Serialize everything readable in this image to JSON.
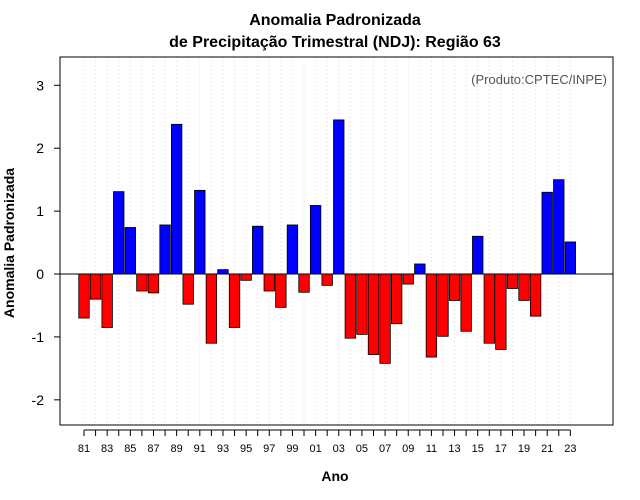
{
  "chart_data": {
    "type": "bar",
    "title": "Anomalia Padronizada",
    "subtitle": "de Precipitação Trimestral (NDJ): Região 63",
    "credit": "(Produto:CPTEC/INPE)",
    "xlabel": "Ano",
    "ylabel": "Anomalia Padronizada",
    "ylim": [
      -2.4,
      3.45
    ],
    "yticks": [
      -2,
      -1,
      0,
      1,
      2,
      3
    ],
    "categories": [
      "81",
      "82",
      "83",
      "84",
      "85",
      "86",
      "87",
      "88",
      "89",
      "90",
      "91",
      "92",
      "93",
      "94",
      "95",
      "96",
      "97",
      "98",
      "99",
      "00",
      "01",
      "02",
      "03",
      "04",
      "05",
      "06",
      "07",
      "08",
      "09",
      "10",
      "11",
      "12",
      "13",
      "14",
      "15",
      "16",
      "17",
      "18",
      "19",
      "20",
      "21",
      "22",
      "23"
    ],
    "xtick_labels": [
      "81",
      "83",
      "85",
      "87",
      "89",
      "91",
      "93",
      "95",
      "97",
      "99",
      "01",
      "03",
      "05",
      "07",
      "09",
      "11",
      "13",
      "15",
      "17",
      "19",
      "21",
      "23"
    ],
    "values": [
      -0.7,
      -0.4,
      -0.85,
      1.31,
      0.74,
      -0.27,
      -0.3,
      0.78,
      2.38,
      -0.48,
      1.33,
      -1.1,
      0.07,
      -0.85,
      -0.1,
      0.76,
      -0.27,
      -0.53,
      0.78,
      -0.29,
      1.09,
      -0.18,
      2.45,
      -1.02,
      -0.96,
      -1.28,
      -1.42,
      -0.79,
      -0.16,
      0.16,
      -1.32,
      -0.99,
      -0.42,
      -0.91,
      0.6,
      -1.1,
      -1.2,
      -0.23,
      -0.42,
      -0.67,
      1.3,
      1.5,
      0.51
    ],
    "grid": "vertical-dotted",
    "colors": {
      "positive": "#0000ff",
      "negative": "#ff0000",
      "zero_line": "#000000",
      "grid": "#d9d9d9"
    }
  }
}
